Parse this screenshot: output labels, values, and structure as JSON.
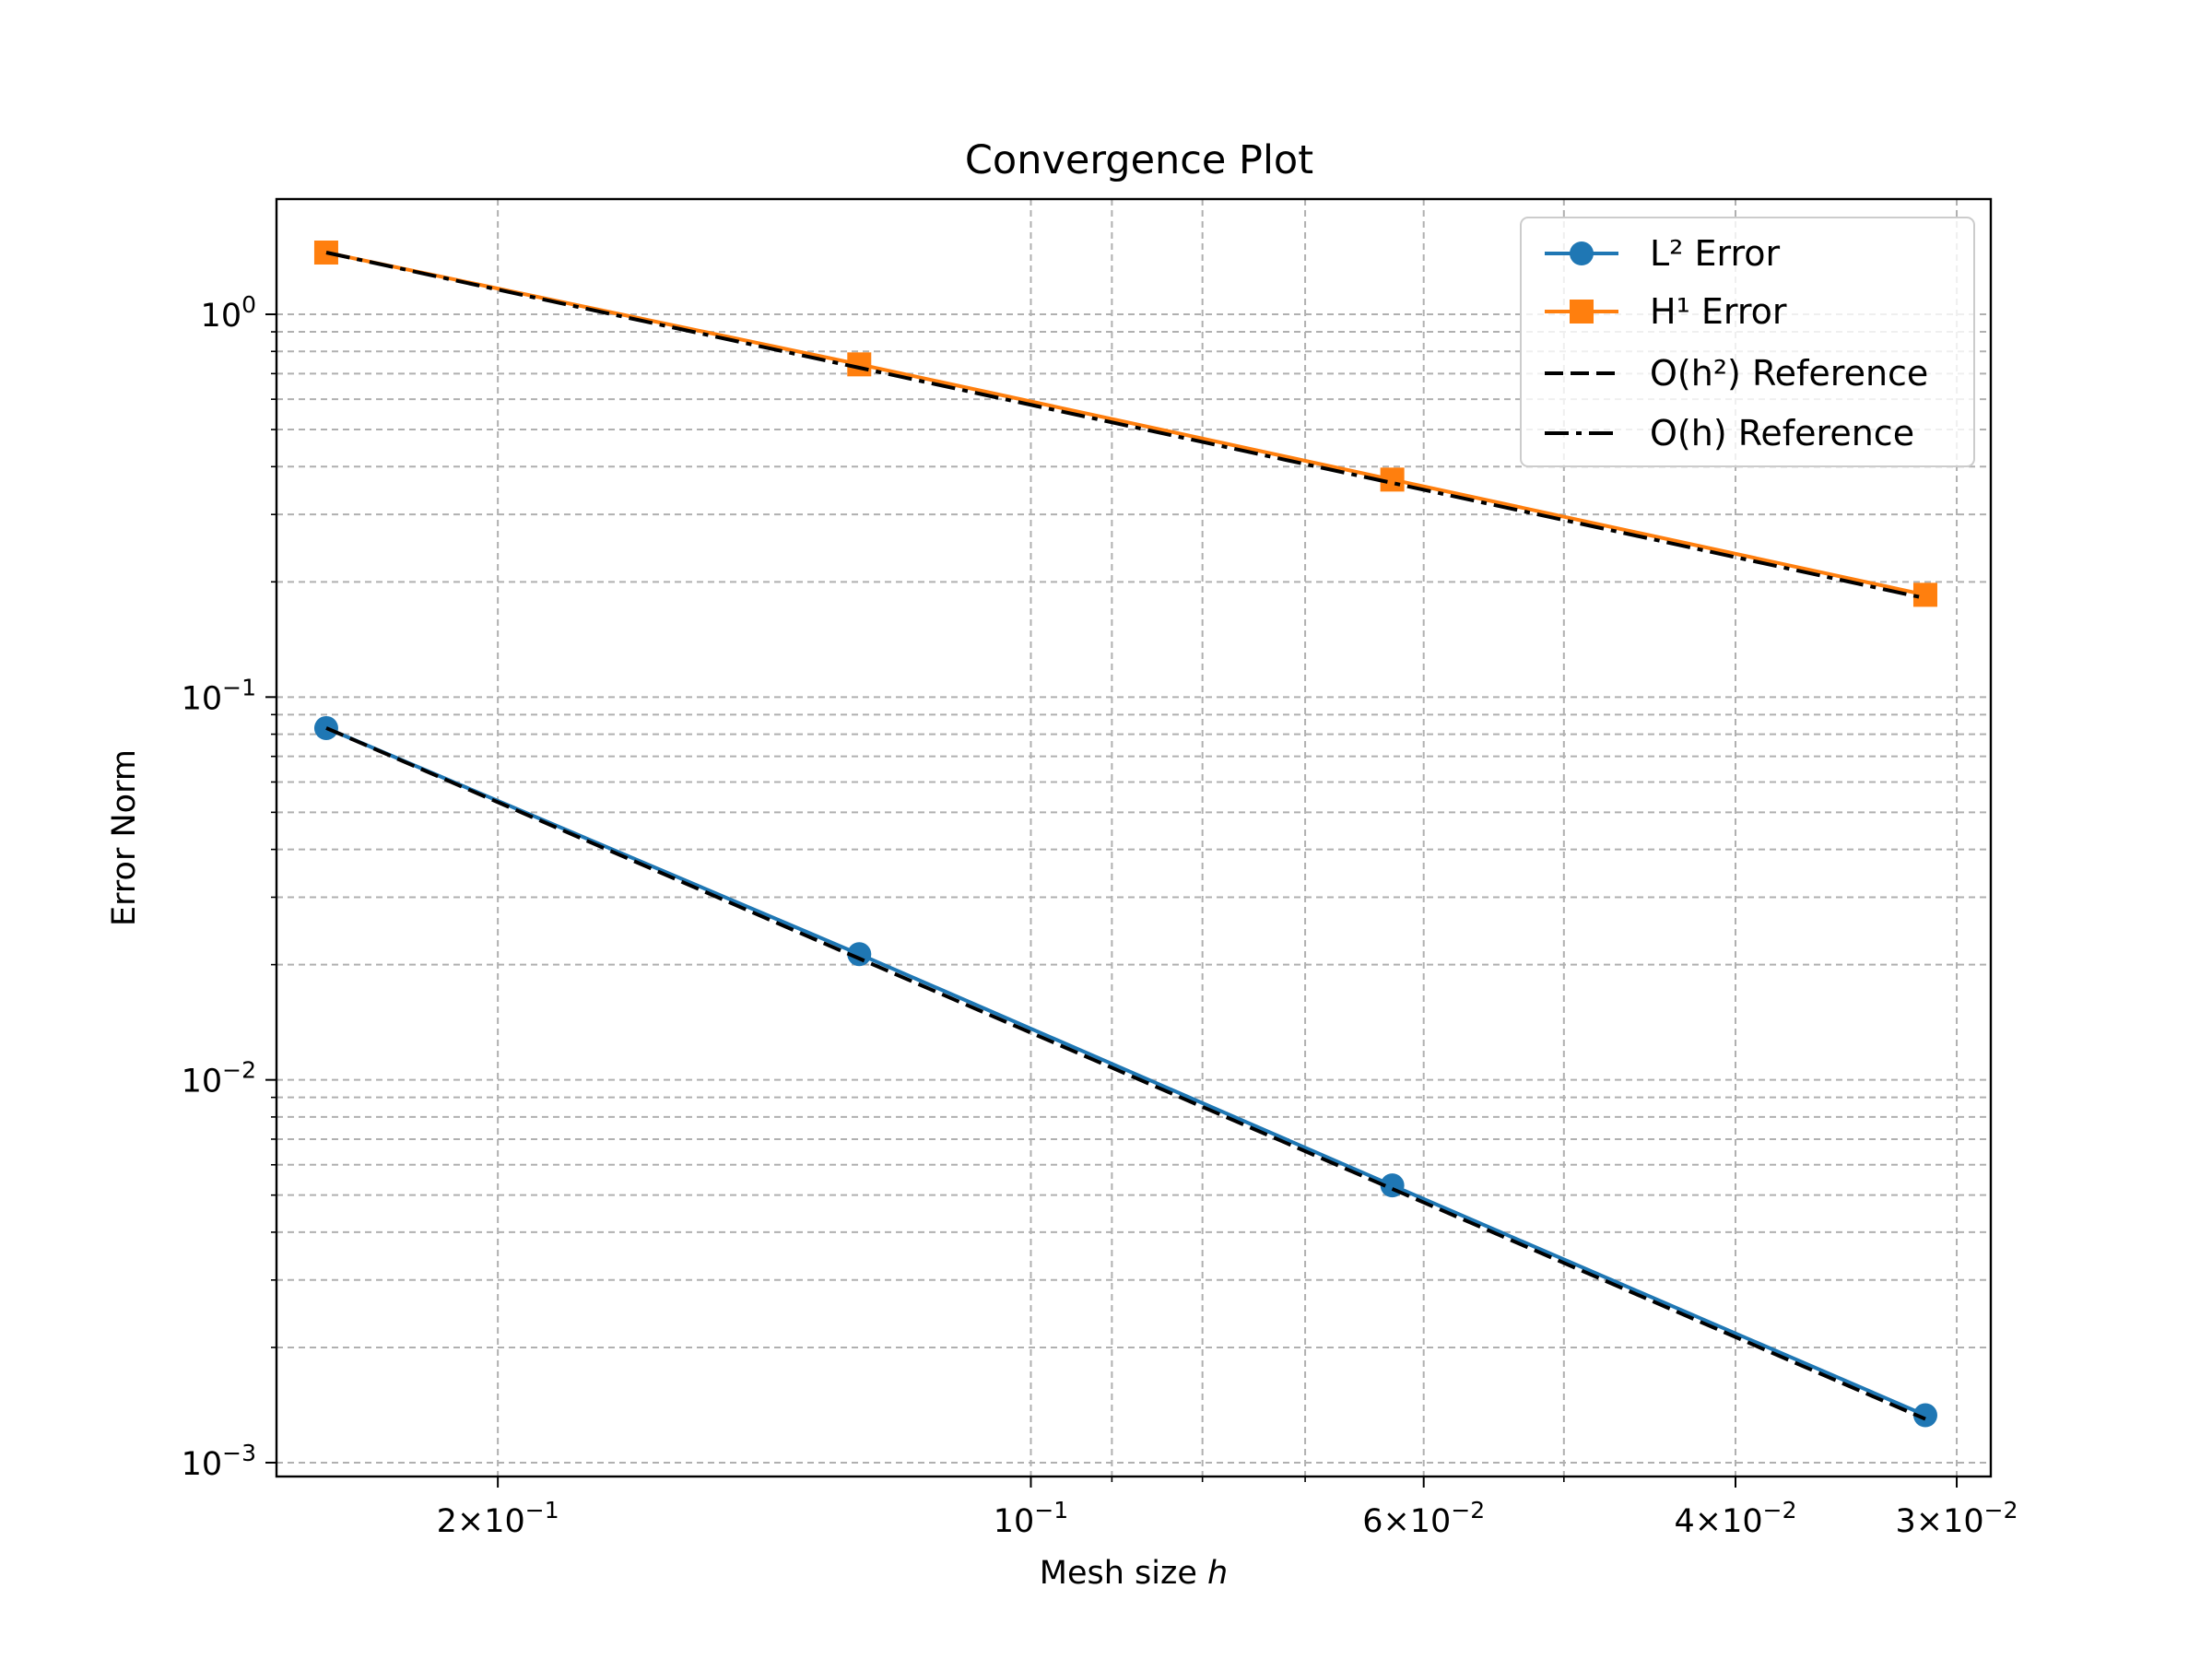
{
  "chart_data": {
    "type": "line",
    "title": "Convergence Plot",
    "xlabel": "Mesh size h",
    "ylabel": "Error Norm",
    "x_scale": "log",
    "y_scale": "log",
    "x_inverted": true,
    "xlim": [
      0.2667,
      0.0287
    ],
    "ylim": [
      0.00092,
      2.0
    ],
    "grid": true,
    "grid_which": "both",
    "legend_position": "upper right",
    "x": [
      0.25,
      0.125,
      0.0625,
      0.03125
    ],
    "series": [
      {
        "name": "L² Error",
        "values": [
          0.083,
          0.0213,
          0.0053,
          0.00133
        ],
        "color": "#1f77b4",
        "marker": "circle",
        "linestyle": "solid"
      },
      {
        "name": "H¹ Error",
        "values": [
          1.45,
          0.74,
          0.37,
          0.185
        ],
        "color": "#ff7f0e",
        "marker": "square",
        "linestyle": "solid"
      },
      {
        "name": "O(h²) Reference",
        "values": [
          0.083,
          0.02075,
          0.00519,
          0.0013
        ],
        "color": "#000000",
        "marker": "none",
        "linestyle": "dashed"
      },
      {
        "name": "O(h) Reference",
        "values": [
          1.45,
          0.725,
          0.3625,
          0.18125
        ],
        "color": "#000000",
        "marker": "none",
        "linestyle": "dashdot"
      }
    ],
    "x_ticks": [
      {
        "value": 0.2,
        "base": "2×10",
        "exp": "−1"
      },
      {
        "value": 0.1,
        "base": "10",
        "exp": "−1"
      },
      {
        "value": 0.06,
        "base": "6×10",
        "exp": "−2"
      },
      {
        "value": 0.04,
        "base": "4×10",
        "exp": "−2"
      },
      {
        "value": 0.03,
        "base": "3×10",
        "exp": "−2"
      }
    ],
    "x_minor_grid": [
      0.09,
      0.08,
      0.07,
      0.05
    ],
    "y_ticks": [
      {
        "value": 1,
        "base": "10",
        "exp": "0"
      },
      {
        "value": 0.1,
        "base": "10",
        "exp": "−1"
      },
      {
        "value": 0.01,
        "base": "10",
        "exp": "−2"
      },
      {
        "value": 0.001,
        "base": "10",
        "exp": "−3"
      }
    ]
  }
}
